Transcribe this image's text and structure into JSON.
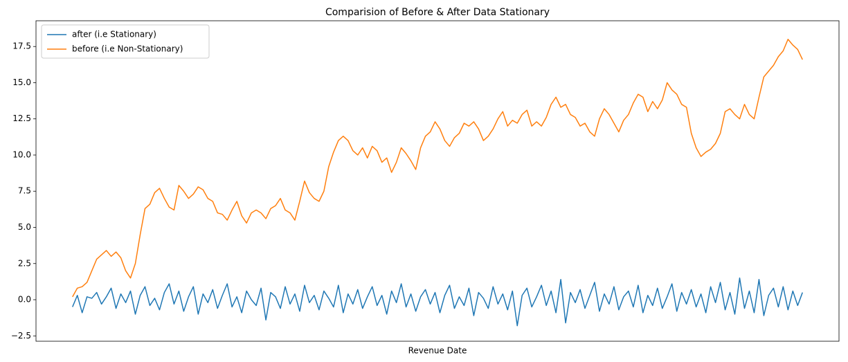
{
  "chart_data": {
    "type": "line",
    "title": "Comparision of Before & After Data Stationary",
    "x_label": "Revenue Date",
    "legend": "upper left",
    "grid": false,
    "xlim": [
      -7.55,
      158.55
    ],
    "ylim": [
      -2.87,
      19.28
    ],
    "yticks": [
      {
        "value": -2.5,
        "label": "−2.5"
      },
      {
        "value": 0,
        "label": "0.0"
      },
      2.5,
      {
        "value": 5,
        "label": "5.0"
      },
      7.5,
      {
        "value": 10,
        "label": "10.0"
      },
      12.5,
      {
        "value": 15,
        "label": "15.0"
      },
      17.5
    ],
    "series": [
      {
        "name": "after (i.e Stationary)",
        "color": "#1f77b4",
        "values": [
          -0.5,
          0.3,
          -0.9,
          0.2,
          0.1,
          0.5,
          -0.3,
          0.2,
          0.8,
          -0.6,
          0.4,
          -0.2,
          0.6,
          -1.0,
          0.3,
          0.9,
          -0.4,
          0.1,
          -0.7,
          0.5,
          1.1,
          -0.3,
          0.6,
          -0.8,
          0.2,
          0.9,
          -1.0,
          0.4,
          -0.2,
          0.7,
          -0.6,
          0.3,
          1.1,
          -0.5,
          0.2,
          -0.9,
          0.6,
          0.0,
          -0.4,
          0.8,
          -1.4,
          0.5,
          0.2,
          -0.6,
          0.9,
          -0.3,
          0.4,
          -0.8,
          1.0,
          -0.2,
          0.3,
          -0.7,
          0.6,
          0.1,
          -0.5,
          1.0,
          -0.9,
          0.4,
          -0.3,
          0.7,
          -0.6,
          0.2,
          0.9,
          -0.4,
          0.3,
          -1.0,
          0.6,
          -0.2,
          1.1,
          -0.5,
          0.4,
          -0.8,
          0.2,
          0.7,
          -0.3,
          0.5,
          -0.9,
          0.3,
          1.0,
          -0.6,
          0.2,
          -0.4,
          0.8,
          -1.1,
          0.5,
          0.1,
          -0.6,
          0.9,
          -0.3,
          0.4,
          -0.7,
          0.6,
          -1.8,
          0.3,
          0.8,
          -0.5,
          0.2,
          1.0,
          -0.4,
          0.6,
          -0.9,
          1.4,
          -1.6,
          0.5,
          -0.2,
          0.7,
          -0.6,
          0.3,
          1.2,
          -0.8,
          0.4,
          -0.3,
          0.9,
          -0.7,
          0.2,
          0.6,
          -0.5,
          1.0,
          -0.9,
          0.3,
          -0.4,
          0.8,
          -0.6,
          0.2,
          1.1,
          -0.8,
          0.5,
          -0.3,
          0.7,
          -0.5,
          0.4,
          -0.9,
          0.9,
          -0.2,
          1.2,
          -0.7,
          0.5,
          -1.0,
          1.5,
          -0.6,
          0.6,
          -0.9,
          1.4,
          -1.1,
          0.3,
          0.8,
          -0.5,
          0.9,
          -0.7,
          0.6,
          -0.4,
          0.5
        ]
      },
      {
        "name": "before (i.e Non-Stationary)",
        "color": "#ff7f0e",
        "values": [
          0.2,
          0.8,
          0.9,
          1.2,
          2.0,
          2.8,
          3.1,
          3.4,
          3.0,
          3.3,
          2.9,
          2.0,
          1.5,
          2.5,
          4.5,
          6.3,
          6.6,
          7.4,
          7.7,
          7.0,
          6.4,
          6.2,
          7.9,
          7.5,
          7.0,
          7.3,
          7.8,
          7.6,
          7.0,
          6.8,
          6.0,
          5.9,
          5.5,
          6.2,
          6.8,
          5.8,
          5.3,
          6.0,
          6.2,
          6.0,
          5.6,
          6.3,
          6.5,
          7.0,
          6.2,
          6.0,
          5.5,
          6.8,
          8.2,
          7.4,
          7.0,
          6.8,
          7.5,
          9.2,
          10.2,
          11.0,
          11.3,
          11.0,
          10.3,
          10.0,
          10.5,
          9.8,
          10.6,
          10.3,
          9.5,
          9.8,
          8.8,
          9.5,
          10.5,
          10.1,
          9.6,
          9.0,
          10.5,
          11.3,
          11.6,
          12.3,
          11.8,
          11.0,
          10.6,
          11.2,
          11.5,
          12.2,
          12.0,
          12.3,
          11.8,
          11.0,
          11.3,
          11.8,
          12.5,
          13.0,
          12.0,
          12.4,
          12.2,
          12.8,
          13.1,
          12.0,
          12.3,
          12.0,
          12.6,
          13.5,
          14.0,
          13.3,
          13.5,
          12.8,
          12.6,
          12.0,
          12.2,
          11.6,
          11.3,
          12.5,
          13.2,
          12.8,
          12.2,
          11.6,
          12.4,
          12.8,
          13.6,
          14.2,
          14.0,
          13.0,
          13.7,
          13.2,
          13.8,
          15.0,
          14.5,
          14.2,
          13.5,
          13.3,
          11.5,
          10.5,
          9.9,
          10.2,
          10.4,
          10.8,
          11.5,
          13.0,
          13.2,
          12.8,
          12.5,
          13.5,
          12.8,
          12.5,
          14.0,
          15.4,
          15.8,
          16.2,
          16.8,
          17.2,
          18.0,
          17.6,
          17.3,
          16.6
        ]
      }
    ]
  }
}
